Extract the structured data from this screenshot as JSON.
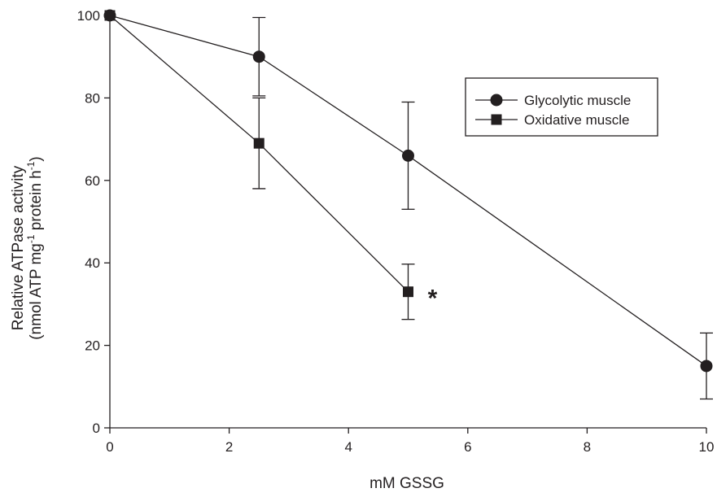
{
  "chart_data": {
    "type": "line",
    "title": "",
    "xlabel": "mM GSSG",
    "ylabel": {
      "line1": "Relative ATPase activity",
      "line2_part1": "(nmol ATP mg",
      "line2_sup1": "-1",
      "line2_part2": " protein h",
      "line2_sup2": "-1",
      "line2_part3": ")"
    },
    "xlim": [
      0,
      10
    ],
    "ylim": [
      0,
      100
    ],
    "xticks": [
      0,
      2,
      4,
      6,
      8,
      10
    ],
    "yticks": [
      0,
      20,
      40,
      60,
      80,
      100
    ],
    "grid": false,
    "legend_position": "top-right",
    "series": [
      {
        "name": "Glycolytic muscle",
        "marker": "circle",
        "color": "#231f20",
        "points": [
          {
            "x": 0,
            "y": 100,
            "err": 0
          },
          {
            "x": 2.5,
            "y": 90,
            "err": 9.5
          },
          {
            "x": 5,
            "y": 66,
            "err": 13
          },
          {
            "x": 10,
            "y": 15,
            "err": 8
          }
        ]
      },
      {
        "name": "Oxidative muscle",
        "marker": "square",
        "color": "#231f20",
        "points": [
          {
            "x": 0,
            "y": 100,
            "err": 0
          },
          {
            "x": 2.5,
            "y": 69,
            "err": 11
          },
          {
            "x": 5,
            "y": 33,
            "err": 6.7
          }
        ]
      }
    ],
    "annotations": [
      {
        "text": "*",
        "x": 5,
        "y": 33
      }
    ]
  }
}
